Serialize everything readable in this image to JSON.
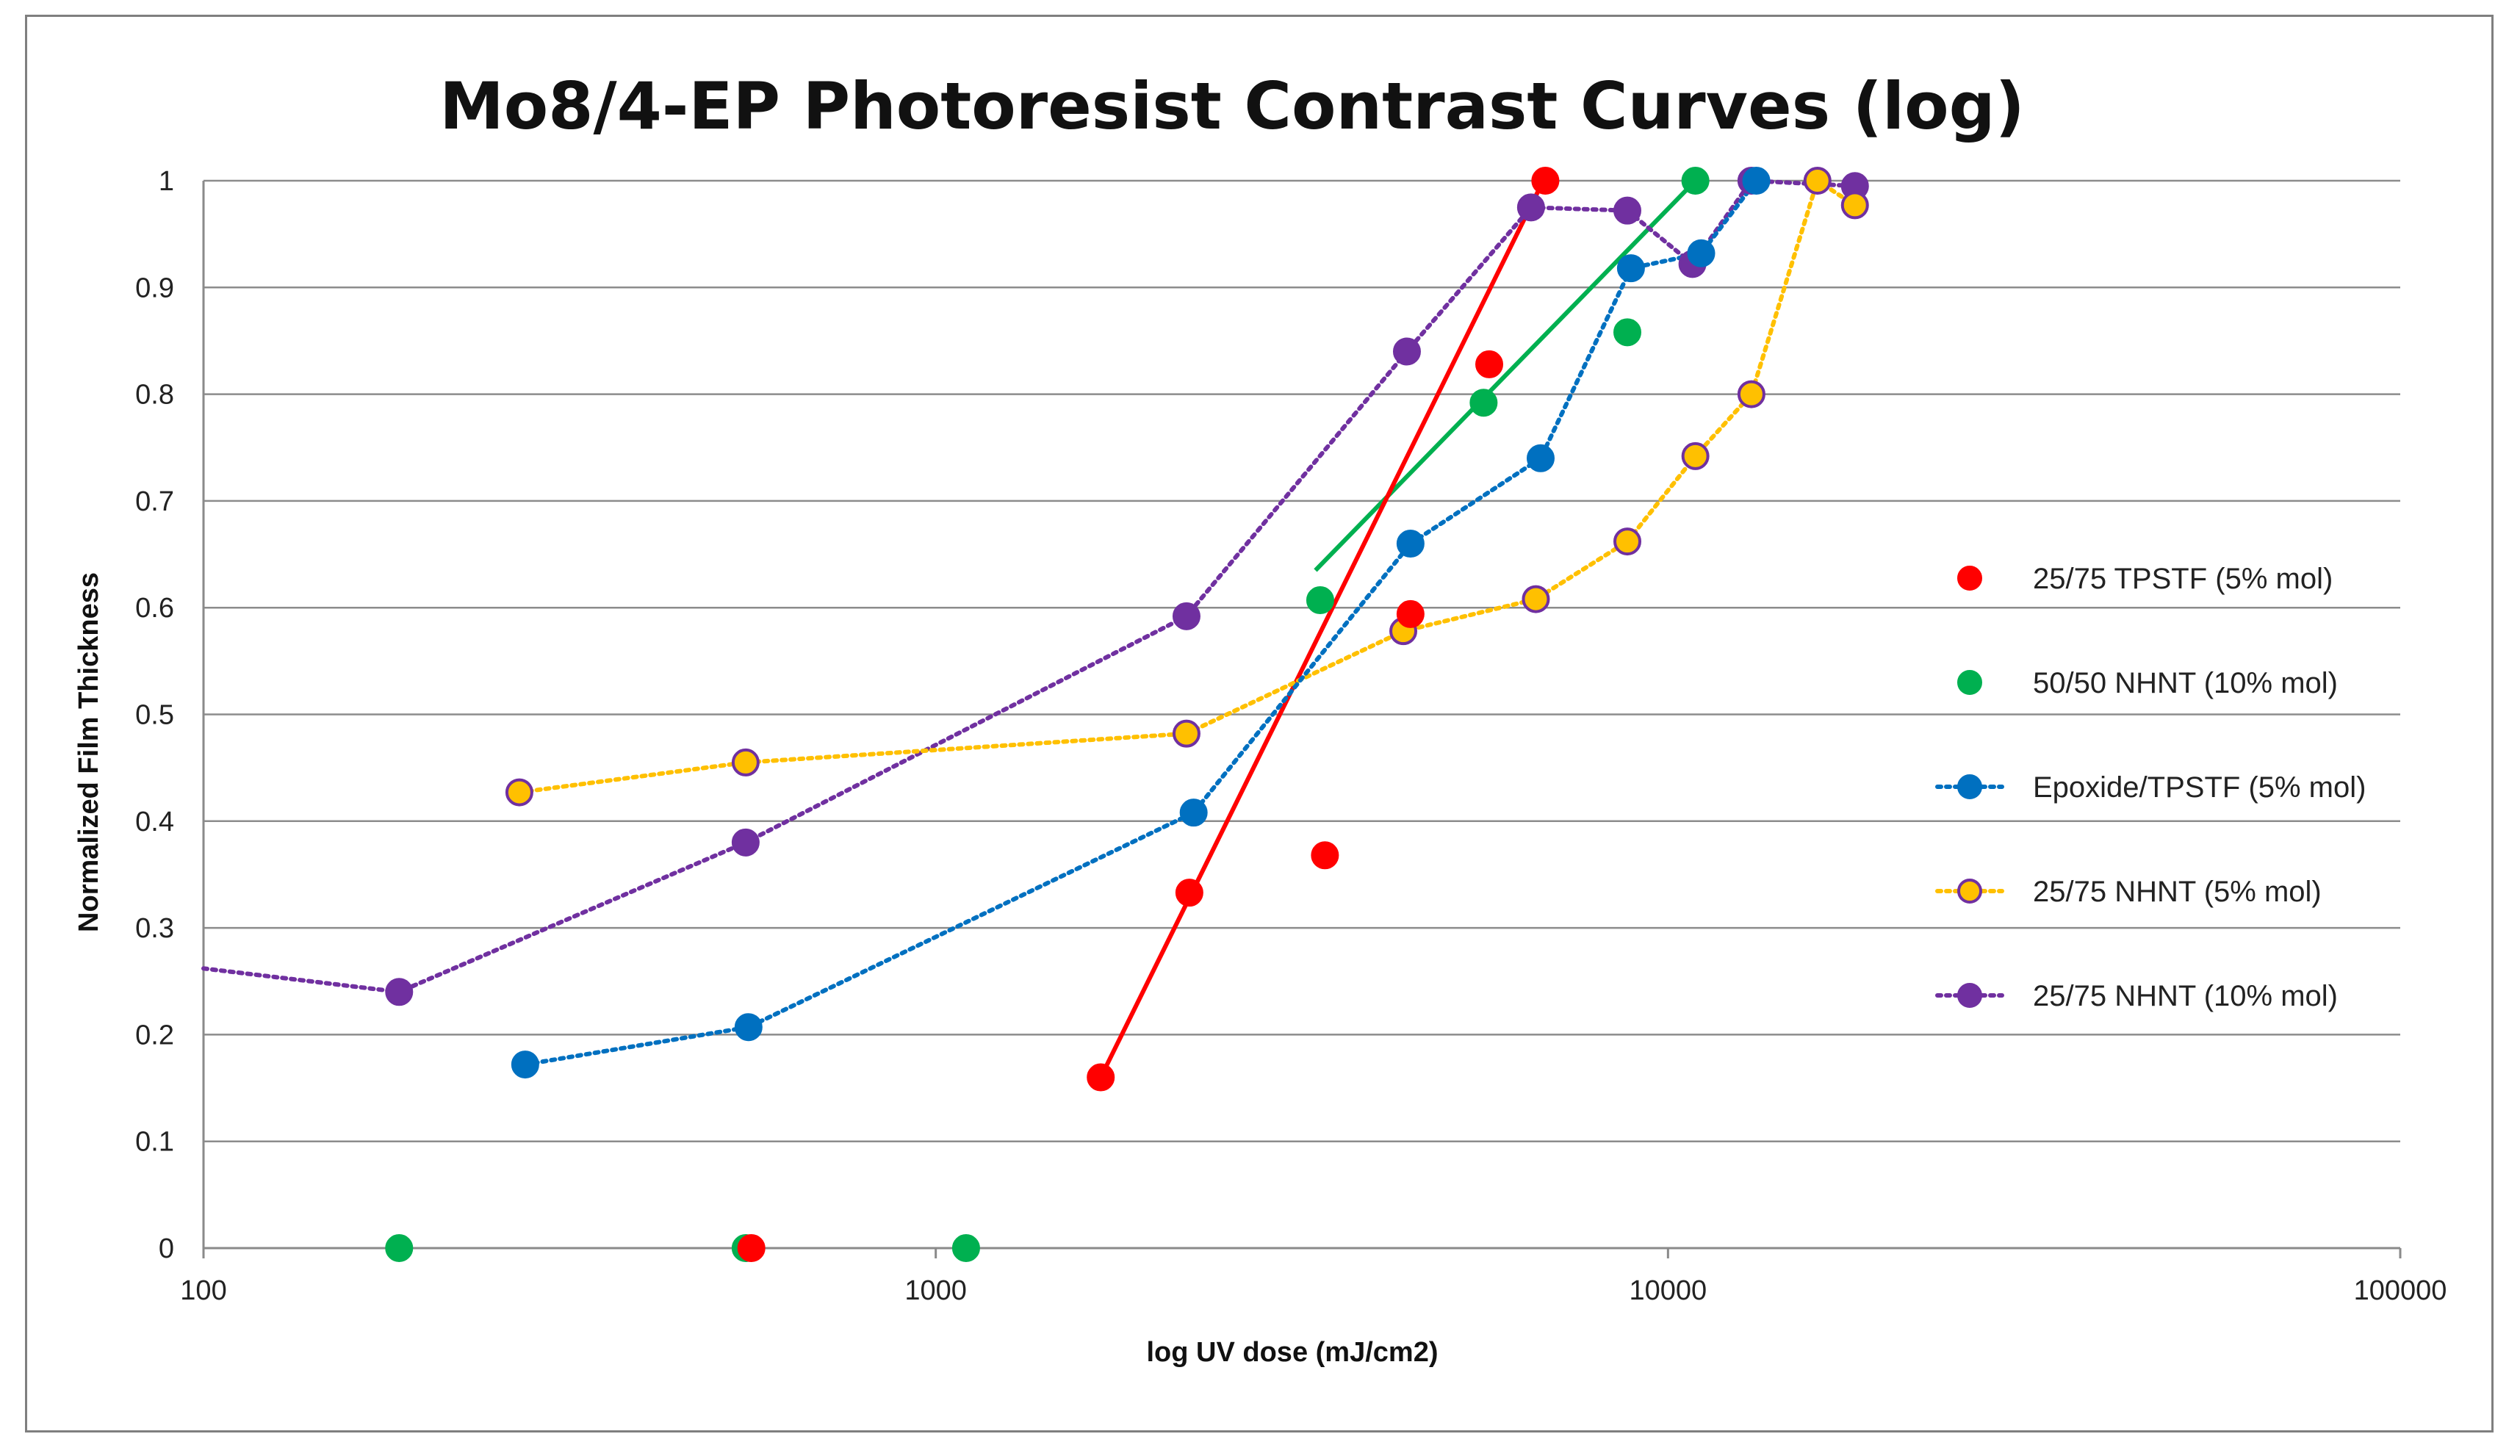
{
  "chart_data": {
    "type": "scatter",
    "title": "Mo8/4-EP Photoresist Contrast Curves (log)",
    "xlabel": "log UV dose (mJ/cm2)",
    "ylabel": "Normalized Film Thickness",
    "xscale": "log",
    "xlim": [
      100,
      100000
    ],
    "ylim": [
      0,
      1
    ],
    "xticks": [
      100,
      1000,
      10000,
      100000
    ],
    "xtick_labels": [
      "100",
      "1000",
      "10000",
      "100000"
    ],
    "yticks": [
      0,
      0.1,
      0.2,
      0.3,
      0.4,
      0.5,
      0.6,
      0.7,
      0.8,
      0.9,
      1
    ],
    "ytick_labels": [
      "0",
      "0.1",
      "0.2",
      "0.3",
      "0.4",
      "0.5",
      "0.6",
      "0.7",
      "0.8",
      "0.9",
      "1"
    ],
    "grid": "horizontal",
    "legend_position": "right",
    "series": [
      {
        "name": "25/75 NHNT (10% mol)",
        "color": "#7030A0",
        "marker_edge": "#7030A0",
        "line": "dotted",
        "x": [
          100,
          185,
          550,
          2200,
          4400,
          6500,
          8800,
          10800,
          13000,
          18000
        ],
        "y": [
          0.262,
          0.24,
          0.38,
          0.592,
          0.84,
          0.975,
          0.972,
          0.922,
          1.0,
          0.995
        ],
        "marker_from_index": 1
      },
      {
        "name": "25/75 NHNT (5% mol)",
        "color": "#FFC000",
        "marker_edge": "#7030A0",
        "line": "dotted",
        "x": [
          270,
          550,
          2200,
          4350,
          6600,
          8800,
          10900,
          13000,
          16000,
          18000
        ],
        "y": [
          0.427,
          0.455,
          0.482,
          0.578,
          0.608,
          0.662,
          0.742,
          0.8,
          1.0,
          0.977
        ]
      },
      {
        "name": "Epoxide/TPSTF (5% mol)",
        "color": "#0070C0",
        "marker_edge": "#0070C0",
        "line": "dotted",
        "x": [
          275,
          555,
          2250,
          4450,
          6700,
          8900,
          11100,
          13200
        ],
        "y": [
          0.172,
          0.207,
          0.408,
          0.66,
          0.74,
          0.918,
          0.932,
          1.0
        ]
      },
      {
        "name": "50/50 NHNT (10% mol)",
        "color": "#00B050",
        "marker_edge": "#00B050",
        "line": "none",
        "x": [
          185,
          550,
          1100,
          3350,
          5600,
          8800,
          10900
        ],
        "y": [
          0.0,
          0.0,
          0.0,
          0.607,
          0.792,
          0.858,
          1.0
        ],
        "fit_line": {
          "x": [
            3300,
            10900
          ],
          "y": [
            0.635,
            1.0
          ]
        }
      },
      {
        "name": "25/75 TPSTF (5% mol)",
        "color": "#FF0000",
        "marker_edge": "#FF0000",
        "line": "none",
        "x": [
          560,
          1680,
          2220,
          3400,
          4450,
          5700,
          6800
        ],
        "y": [
          0.0,
          0.16,
          0.333,
          0.368,
          0.594,
          0.828,
          1.0
        ],
        "fit_line": {
          "x": [
            1680,
            6700
          ],
          "y": [
            0.16,
            0.995
          ]
        }
      }
    ],
    "legend_order": [
      "25/75 TPSTF (5% mol)",
      "50/50 NHNT (10% mol)",
      "Epoxide/TPSTF (5% mol)",
      "25/75 NHNT (5% mol)",
      "25/75 NHNT (10% mol)"
    ]
  }
}
